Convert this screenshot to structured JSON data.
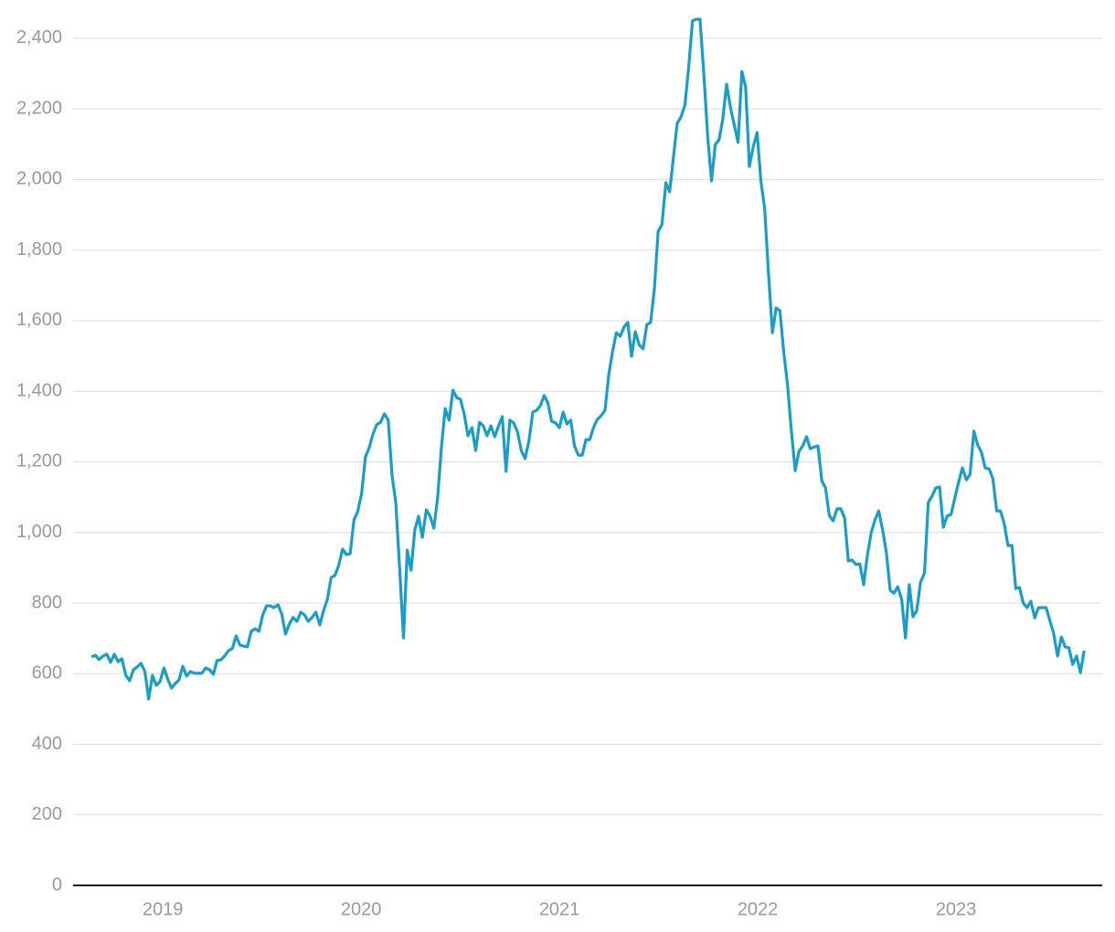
{
  "chart_data": {
    "type": "line",
    "x": [
      2018.641,
      2018.66,
      2018.679,
      2018.699,
      2018.718,
      2018.737,
      2018.756,
      2018.775,
      2018.794,
      2018.814,
      2018.833,
      2018.852,
      2018.871,
      2018.89,
      2018.91,
      2018.929,
      2018.948,
      2018.967,
      2018.986,
      2019.006,
      2019.025,
      2019.044,
      2019.063,
      2019.082,
      2019.101,
      2019.12,
      2019.14,
      2019.159,
      2019.178,
      2019.197,
      2019.216,
      2019.236,
      2019.255,
      2019.274,
      2019.293,
      2019.312,
      2019.331,
      2019.351,
      2019.37,
      2019.389,
      2019.408,
      2019.427,
      2019.446,
      2019.466,
      2019.485,
      2019.504,
      2019.523,
      2019.542,
      2019.561,
      2019.581,
      2019.6,
      2019.619,
      2019.638,
      2019.657,
      2019.677,
      2019.696,
      2019.715,
      2019.734,
      2019.753,
      2019.772,
      2019.792,
      2019.811,
      2019.83,
      2019.849,
      2019.868,
      2019.887,
      2019.907,
      2019.926,
      2019.945,
      2019.964,
      2019.983,
      2020.003,
      2020.022,
      2020.041,
      2020.06,
      2020.079,
      2020.098,
      2020.118,
      2020.137,
      2020.156,
      2020.175,
      2020.194,
      2020.214,
      2020.233,
      2020.252,
      2020.271,
      2020.29,
      2020.309,
      2020.329,
      2020.348,
      2020.367,
      2020.386,
      2020.405,
      2020.424,
      2020.444,
      2020.463,
      2020.482,
      2020.501,
      2020.52,
      2020.539,
      2020.559,
      2020.578,
      2020.597,
      2020.616,
      2020.635,
      2020.655,
      2020.674,
      2020.693,
      2020.712,
      2020.731,
      2020.75,
      2020.77,
      2020.789,
      2020.808,
      2020.827,
      2020.846,
      2020.866,
      2020.885,
      2020.904,
      2020.923,
      2020.942,
      2020.961,
      2020.981,
      2021.0,
      2021.019,
      2021.038,
      2021.057,
      2021.076,
      2021.096,
      2021.115,
      2021.134,
      2021.153,
      2021.172,
      2021.191,
      2021.211,
      2021.23,
      2021.249,
      2021.268,
      2021.287,
      2021.307,
      2021.326,
      2021.345,
      2021.364,
      2021.383,
      2021.402,
      2021.422,
      2021.441,
      2021.46,
      2021.479,
      2021.498,
      2021.517,
      2021.537,
      2021.556,
      2021.575,
      2021.594,
      2021.613,
      2021.633,
      2021.652,
      2021.671,
      2021.69,
      2021.709,
      2021.728,
      2021.748,
      2021.767,
      2021.786,
      2021.805,
      2021.824,
      2021.843,
      2021.863,
      2021.882,
      2021.901,
      2021.92,
      2021.939,
      2021.958,
      2021.978,
      2021.997,
      2022.016,
      2022.035,
      2022.054,
      2022.074,
      2022.093,
      2022.112,
      2022.131,
      2022.15,
      2022.169,
      2022.189,
      2022.208,
      2022.227,
      2022.246,
      2022.265,
      2022.284,
      2022.304,
      2022.323,
      2022.342,
      2022.361,
      2022.38,
      2022.4,
      2022.419,
      2022.438,
      2022.457,
      2022.476,
      2022.495,
      2022.515,
      2022.534,
      2022.553,
      2022.572,
      2022.591,
      2022.61,
      2022.63,
      2022.649,
      2022.668,
      2022.687,
      2022.706,
      2022.726,
      2022.745,
      2022.764,
      2022.783,
      2022.802,
      2022.821,
      2022.841,
      2022.86,
      2022.879,
      2022.898,
      2022.917,
      2022.936,
      2022.955,
      2022.975,
      2022.994,
      2023.013,
      2023.032,
      2023.052,
      2023.071,
      2023.09,
      2023.109,
      2023.128,
      2023.147,
      2023.167,
      2023.186,
      2023.205,
      2023.224,
      2023.243,
      2023.262,
      2023.282,
      2023.301,
      2023.32,
      2023.339,
      2023.358,
      2023.377,
      2023.397,
      2023.416,
      2023.435,
      2023.454,
      2023.473,
      2023.492,
      2023.512,
      2023.531,
      2023.55,
      2023.569,
      2023.588,
      2023.608,
      2023.627,
      2023.646
    ],
    "series": [
      {
        "color": "#1a9dc9",
        "values": [
          647,
          652,
          640,
          650,
          655,
          632,
          655,
          634,
          642,
          595,
          580,
          611,
          619,
          629,
          606,
          528,
          595,
          567,
          577,
          616,
          585,
          559,
          572,
          582,
          621,
          593,
          606,
          601,
          601,
          601,
          616,
          611,
          598,
          637,
          639,
          650,
          665,
          671,
          707,
          681,
          678,
          676,
          720,
          727,
          720,
          766,
          792,
          792,
          787,
          795,
          769,
          712,
          740,
          759,
          748,
          774,
          766,
          748,
          759,
          774,
          738,
          779,
          810,
          872,
          878,
          906,
          953,
          937,
          940,
          1035,
          1059,
          1111,
          1214,
          1240,
          1279,
          1305,
          1312,
          1336,
          1318,
          1162,
          1085,
          903,
          701,
          950,
          893,
          1007,
          1046,
          986,
          1064,
          1046,
          1012,
          1098,
          1240,
          1351,
          1318,
          1403,
          1382,
          1377,
          1336,
          1274,
          1297,
          1232,
          1312,
          1302,
          1274,
          1302,
          1271,
          1302,
          1328,
          1173,
          1318,
          1310,
          1284,
          1232,
          1209,
          1258,
          1341,
          1346,
          1359,
          1388,
          1367,
          1315,
          1310,
          1297,
          1341,
          1307,
          1318,
          1245,
          1219,
          1219,
          1263,
          1263,
          1297,
          1320,
          1331,
          1346,
          1447,
          1512,
          1566,
          1556,
          1582,
          1595,
          1499,
          1569,
          1532,
          1520,
          1589,
          1595,
          1690,
          1853,
          1872,
          1991,
          1965,
          2063,
          2159,
          2177,
          2211,
          2319,
          2449,
          2454,
          2454,
          2301,
          2120,
          1996,
          2099,
          2112,
          2172,
          2270,
          2203,
          2154,
          2105,
          2306,
          2262,
          2037,
          2094,
          2133,
          1996,
          1918,
          1737,
          1566,
          1636,
          1628,
          1512,
          1421,
          1292,
          1175,
          1230,
          1245,
          1271,
          1237,
          1242,
          1245,
          1147,
          1126,
          1048,
          1033,
          1067,
          1067,
          1041,
          919,
          922,
          909,
          911,
          852,
          935,
          999,
          1035,
          1061,
          1007,
          942,
          836,
          828,
          846,
          810,
          701,
          852,
          761,
          779,
          859,
          885,
          1085,
          1103,
          1126,
          1129,
          1015,
          1046,
          1051,
          1098,
          1142,
          1183,
          1149,
          1165,
          1287,
          1248,
          1227,
          1183,
          1180,
          1152,
          1061,
          1061,
          1025,
          963,
          963,
          841,
          844,
          800,
          787,
          805,
          758,
          787,
          787,
          787,
          751,
          714,
          650,
          704,
          676,
          673,
          626,
          650,
          603,
          665
        ]
      }
    ],
    "xlim": [
      2018.548,
      2023.737
    ],
    "xticks": [
      2019,
      2020,
      2021,
      2022,
      2023
    ],
    "ylim": [
      0,
      2500
    ],
    "yticks": [
      0,
      200,
      400,
      600,
      800,
      {
        "value": 1000,
        "label": "1,000"
      },
      {
        "value": 1200,
        "label": "1,200"
      },
      {
        "value": 1400,
        "label": "1,400"
      },
      {
        "value": 1600,
        "label": "1,600"
      },
      {
        "value": 1800,
        "label": "1,800"
      },
      {
        "value": 2000,
        "label": "2,000"
      },
      {
        "value": 2200,
        "label": "2,200"
      },
      {
        "value": 2400,
        "label": "2,400"
      }
    ],
    "grid": true
  }
}
